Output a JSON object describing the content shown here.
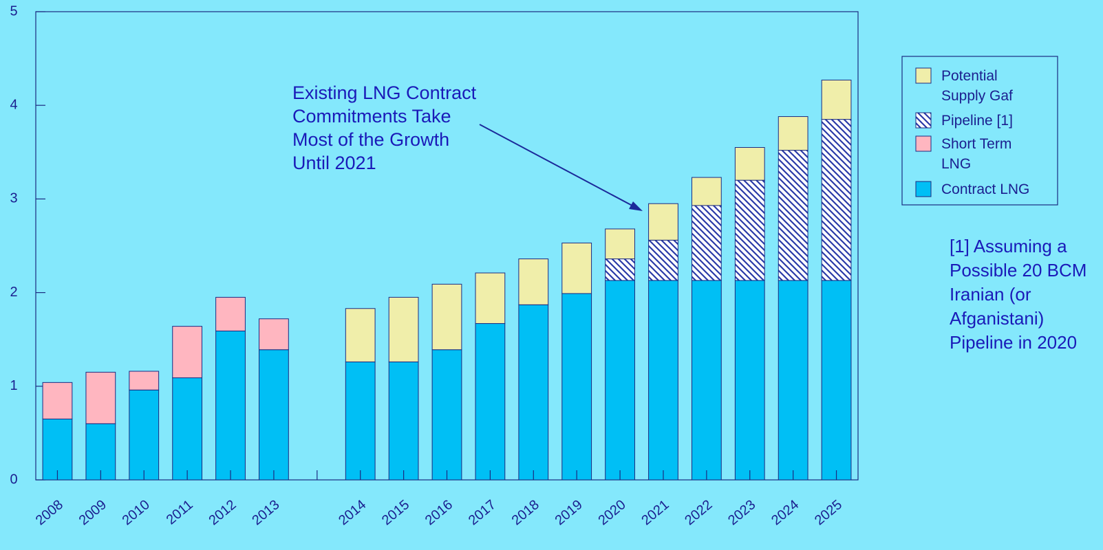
{
  "chart_data": {
    "type": "bar",
    "stacked": true,
    "categories": [
      "2008",
      "2009",
      "2010",
      "2011",
      "2012",
      "2013",
      null,
      "2014",
      "2015",
      "2016",
      "2017",
      "2018",
      "2019",
      "2020",
      "2021",
      "2022",
      "2023",
      "2024",
      "2025"
    ],
    "series": [
      {
        "name": "Contract LNG",
        "color": "#00bff5",
        "values": [
          0.65,
          0.6,
          0.96,
          1.09,
          1.59,
          1.39,
          null,
          1.26,
          1.26,
          1.39,
          1.67,
          1.87,
          1.99,
          2.13,
          2.13,
          2.13,
          2.13,
          2.13,
          2.13
        ]
      },
      {
        "name": "Short  Term\nLNG",
        "color": "#ffb6c0",
        "values": [
          0.39,
          0.55,
          0.2,
          0.55,
          0.36,
          0.33,
          null,
          null,
          null,
          null,
          null,
          null,
          null,
          null,
          null,
          null,
          null,
          null,
          null
        ]
      },
      {
        "name": "Pipeline [1]",
        "color": "#2a3aa8",
        "hatch": true,
        "values": [
          null,
          null,
          null,
          null,
          null,
          null,
          null,
          null,
          null,
          null,
          null,
          null,
          null,
          0.23,
          0.43,
          0.8,
          1.07,
          1.39,
          1.72
        ]
      },
      {
        "name": "Potential\nSupply Gaf",
        "color": "#f0eeaa",
        "values": [
          null,
          null,
          null,
          null,
          null,
          null,
          null,
          0.57,
          0.69,
          0.7,
          0.54,
          0.49,
          0.54,
          0.32,
          0.39,
          0.3,
          0.35,
          0.36,
          0.42
        ]
      }
    ],
    "ylim": [
      0,
      5
    ],
    "yticks": [
      0,
      1,
      2,
      3,
      4,
      5
    ],
    "annotation": "Existing LNG Contract\nCommitments Take\nMost of the Growth\nUntil 2021",
    "note": "[1]  Assuming a\nPossible 20 BCM\nIranian (or\nAfganistani)\nPipeline in 2020",
    "legend": "right"
  }
}
